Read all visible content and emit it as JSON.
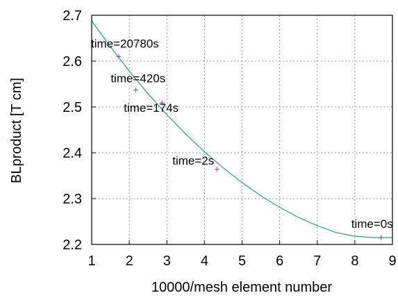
{
  "chart_data": {
    "type": "scatter",
    "title": "",
    "xlabel": "10000/mesh element number",
    "ylabel": "BLproduct [T cm]",
    "xlim": [
      1,
      9
    ],
    "ylim": [
      2.2,
      2.7
    ],
    "xticks": [
      "1",
      "2",
      "3",
      "4",
      "5",
      "6",
      "7",
      "8",
      "9"
    ],
    "yticks": [
      "2.2",
      "2.3",
      "2.4",
      "2.5",
      "2.6",
      "2.7"
    ],
    "grid": true,
    "colors": {
      "points": "#7a4bb0",
      "fit": "#2e9a7a"
    },
    "series": [
      {
        "type": "scatter",
        "marker": "+",
        "x": [
          1.72,
          2.17,
          2.87,
          4.33,
          8.7
        ],
        "y": [
          2.61,
          2.537,
          2.509,
          2.364,
          2.215
        ]
      },
      {
        "type": "line",
        "x": [
          1.0,
          1.5,
          2.0,
          2.5,
          3.0,
          3.5,
          4.0,
          4.5,
          5.0,
          5.5,
          6.0,
          6.5,
          7.0,
          7.5,
          8.0,
          8.5,
          9.0
        ],
        "y": [
          2.688,
          2.631,
          2.578,
          2.529,
          2.483,
          2.441,
          2.402,
          2.367,
          2.335,
          2.306,
          2.281,
          2.259,
          2.241,
          2.226,
          2.218,
          2.215,
          2.215
        ]
      }
    ],
    "annotations": [
      {
        "text": "time=20780s",
        "x": 1.72,
        "y": 2.61
      },
      {
        "text": "time=420s",
        "x": 2.17,
        "y": 2.537
      },
      {
        "text": "time=174s",
        "x": 2.87,
        "y": 2.509
      },
      {
        "text": "time=2s",
        "x": 4.33,
        "y": 2.364
      },
      {
        "text": "time=0s",
        "x": 8.7,
        "y": 2.215
      }
    ]
  }
}
